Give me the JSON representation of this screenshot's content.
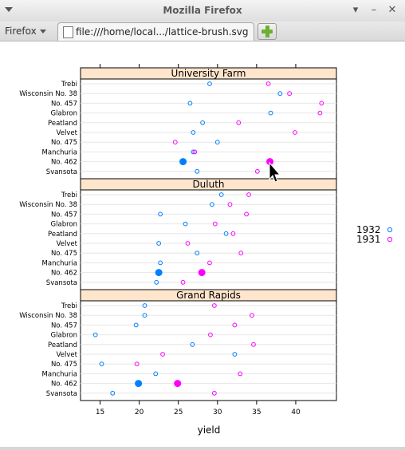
{
  "window": {
    "title": "Mozilla Firefox",
    "minimize_glyph": "▾",
    "restore_glyph": "–",
    "maximize_glyph": "+",
    "close_glyph": "✕"
  },
  "toolbar": {
    "firefox_menu_label": "Firefox"
  },
  "tab": {
    "label": "file:///home/local.../lattice-brush.svg"
  },
  "chart_data": {
    "type": "scatter",
    "xlabel": "yield",
    "xticks": [
      15,
      20,
      25,
      30,
      35,
      40
    ],
    "xlim": [
      12.5,
      45.2
    ],
    "varieties": [
      "Trebi",
      "Wisconsin No. 38",
      "No. 457",
      "Glabron",
      "Peatland",
      "Velvet",
      "No. 475",
      "Manchuria",
      "No. 462",
      "Svansota"
    ],
    "legend": [
      {
        "name": "1932",
        "color": "#0080ff"
      },
      {
        "name": "1931",
        "color": "#ff00ff"
      }
    ],
    "highlighted_variety": "No. 462",
    "panels": [
      {
        "site": "University Farm",
        "y1932": [
          29.0,
          38.0,
          26.5,
          36.8,
          28.1,
          26.9,
          30.0,
          26.9,
          25.6,
          27.4
        ],
        "y1931": [
          36.5,
          39.2,
          43.3,
          43.1,
          32.7,
          39.9,
          24.6,
          27.1,
          36.7,
          35.1
        ]
      },
      {
        "site": "Duluth",
        "y1932": [
          30.5,
          29.3,
          22.7,
          25.9,
          31.1,
          22.5,
          27.4,
          22.7,
          22.5,
          22.2
        ],
        "y1931": [
          34.0,
          31.6,
          33.7,
          29.7,
          32.0,
          26.2,
          33.0,
          29.0,
          28.0,
          25.6
        ]
      },
      {
        "site": "Grand Rapids",
        "y1932": [
          20.7,
          20.7,
          19.6,
          14.4,
          26.8,
          32.2,
          15.2,
          22.1,
          19.9,
          16.6
        ],
        "y1931": [
          29.6,
          34.4,
          32.2,
          29.1,
          34.6,
          23.0,
          19.7,
          32.9,
          24.9,
          29.6
        ]
      }
    ]
  }
}
